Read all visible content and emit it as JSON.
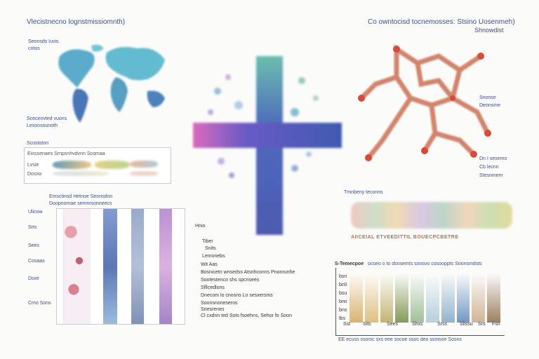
{
  "title_left": "Vlecistnecno lognstmissiomnth)",
  "title_right": "Co owntocisd tocnemosses: Stsino Uosenmeh)",
  "subtitle_right": "Shnowdist",
  "map_labels": {
    "label_a": "Seonsds Iuvis",
    "label_b": "cntos",
    "label_c": "Scecenvted vuons",
    "label_d": "Lesonsounoth"
  },
  "legend_panel": {
    "heading": "Scostotnn",
    "row1": "Eiossenaes   Srnpsnhvdvnn   Scomaa",
    "row2": "Lvsie",
    "row3": "Dosno"
  },
  "strips_panel": {
    "heading_a": "Emsctinsd Hetnoe Seonsdon",
    "heading_b": "Doopnomae senmrsonneecs",
    "side_labels": [
      "Ulicow",
      "Srts",
      "Sees",
      "Cosaas",
      "Dsxe",
      "Cmo Sons"
    ]
  },
  "center_list": {
    "heading": "Hnio",
    "items": [
      "Tiber",
      "Snits",
      "Lemonebs",
      "Wit Aas",
      "Bosnicetn wnsedss  Atsnhconns  Pnonrunhe",
      "Sootestenco shs spcnsees",
      "Sfllcedlons",
      "Dnecom lo cnosns  Lo sesxersms",
      "Soonsnoneseros",
      "Snesrenes",
      "Cl cxdnn ted  Sots fsoehns, Sehor fo Soon"
    ]
  },
  "network_labels": {
    "a": "Snonse",
    "b": "Deonsme",
    "c": "Dn I sesemo",
    "d": "Cb lecnn",
    "e": "Stesnmem"
  },
  "flower_panel": {
    "heading": "Tmnbeny teconns",
    "row_text": "AIICEIAL   ETVEEDITTIL   BOUECPCBETRE"
  },
  "bar_panel": {
    "heading": "S-Temecpoe",
    "heading_b": "ocseo o to dsnsemts sonsvo cosooppts Soonsmdsts",
    "yticks": [
      "bsn",
      "bn0",
      "bsu",
      "bnn",
      "bns",
      "lbs"
    ],
    "xticks": [
      "Sst",
      "Sits",
      "Sees",
      "Shxs",
      "Srss",
      "Sllssu",
      "Srs",
      "Fsn"
    ],
    "caption": "EE ecuss ssomc sxs eee socoe ssos deo ssmsoe Sosns",
    "colors": [
      "#d4a65a",
      "#d9b46c",
      "#b8a85a",
      "#6f8a3a",
      "#8fb58a",
      "#a8c8d8",
      "#7fa6c8",
      "#5a86b8",
      "#c8a888",
      "#8a6a48"
    ]
  }
}
